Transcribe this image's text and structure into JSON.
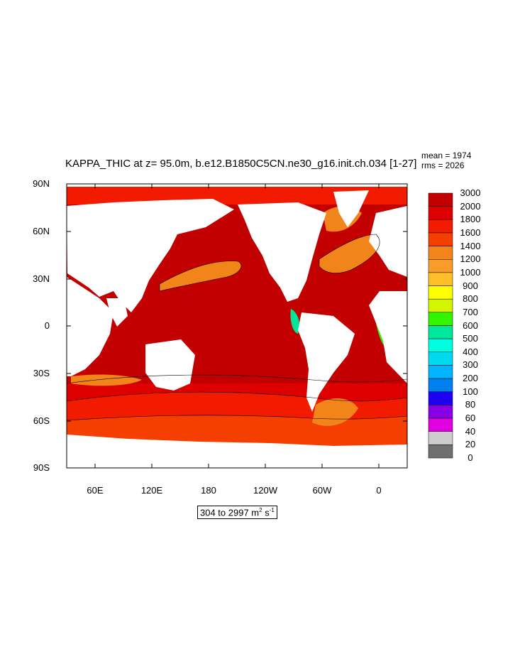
{
  "title": "KAPPA_THIC at z=  95.0m, b.e12.B1850C5CN.ne30_g16.init.ch.034 [1-27]",
  "stats": {
    "mean": "mean = 1974",
    "rms": "rms = 2026"
  },
  "lat_labels": [
    "90N",
    "60N",
    "30N",
    "0",
    "30S",
    "60S",
    "90S"
  ],
  "lon_labels": [
    "60E",
    "120E",
    "180",
    "120W",
    "60W",
    "0"
  ],
  "colorbar": {
    "labels": [
      "3000",
      "2000",
      "1800",
      "1600",
      "1400",
      "1200",
      "1000",
      "900",
      "800",
      "700",
      "600",
      "500",
      "400",
      "300",
      "200",
      "100",
      "80",
      "60",
      "40",
      "20",
      "0"
    ],
    "colors": [
      "#C20000",
      "#DE0000",
      "#F21B00",
      "#F53F00",
      "#F28519",
      "#F99D28",
      "#FFBF28",
      "#FFFF00",
      "#D3F500",
      "#33F500",
      "#00E69A",
      "#00FFE0",
      "#00D9F0",
      "#00B5FF",
      "#0080F0",
      "#1E00F0",
      "#8A00E6",
      "#E000E0",
      "#CCCCCC",
      "#707070",
      "#FFFFFF"
    ]
  },
  "range": {
    "prefix": "304 to 2997 m",
    "sup1": "2",
    "mid": " s",
    "sup2": "-1"
  },
  "colors": {
    "ocean_main": "#C20000",
    "ocean_south": "#DE0000",
    "ocean_mid": "#F21B00",
    "ocean_polar": "#F53F00",
    "ocean_orange": "#F28519",
    "green": "#33F500",
    "teal": "#00E69A"
  }
}
